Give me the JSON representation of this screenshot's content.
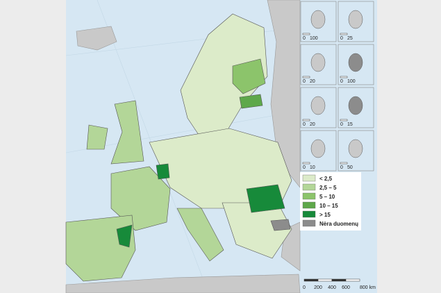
{
  "legend": {
    "items": [
      {
        "label": "< 2,5",
        "color": "#dcebc9"
      },
      {
        "label": "2,5 – 5",
        "color": "#b3d698"
      },
      {
        "label": "5 – 10",
        "color": "#8cc46b"
      },
      {
        "label": "10 – 15",
        "color": "#5ea84a"
      },
      {
        "label": "> 15",
        "color": "#178a3a"
      },
      {
        "label": "Nėra duomenų",
        "color": "#8c8c8c"
      }
    ]
  },
  "insets": [
    {
      "scale": [
        "0",
        "100"
      ]
    },
    {
      "scale": [
        "0",
        "25"
      ]
    },
    {
      "scale": [
        "0",
        "20"
      ]
    },
    {
      "scale": [
        "0",
        "100"
      ]
    },
    {
      "scale": [
        "0",
        "20"
      ]
    },
    {
      "scale": [
        "0",
        "15"
      ]
    },
    {
      "scale": [
        "0",
        "10"
      ]
    },
    {
      "scale": [
        "0",
        "50"
      ]
    }
  ],
  "scale_bar": {
    "labels": [
      "0",
      "200",
      "400",
      "600",
      "800 km"
    ]
  }
}
